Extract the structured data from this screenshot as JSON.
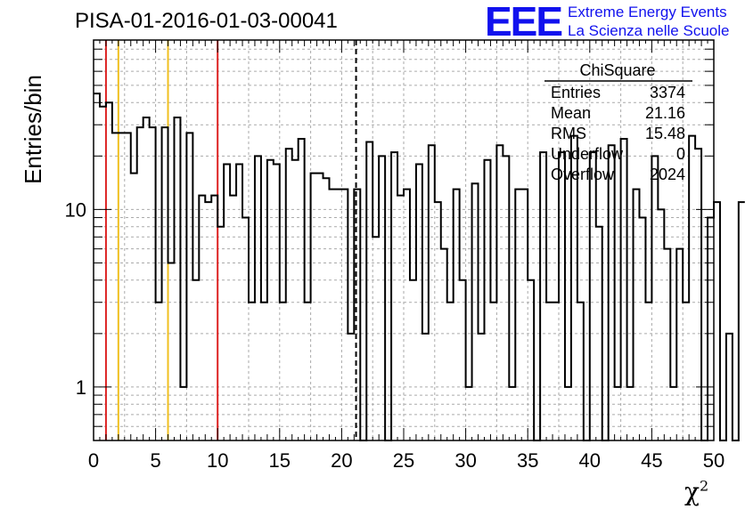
{
  "header": {
    "title": "PISA-01-2016-01-03-00041",
    "logo_text": "EEE",
    "logo_line1": "Extreme Energy Events",
    "logo_line2": "La Scienza nelle Scuole",
    "logo_color": "#1111ee"
  },
  "chart_data": {
    "type": "histogram",
    "xlabel": "χ",
    "xlabel_sup": "2",
    "ylabel": "Entries/bin",
    "x_range": [
      0,
      50
    ],
    "y_range": [
      0.5,
      90
    ],
    "y_scale": "log",
    "bin_width": 0.5,
    "grid": true,
    "x_ticks": [
      0,
      5,
      10,
      15,
      20,
      25,
      30,
      35,
      40,
      45,
      50
    ],
    "y_ticks": [
      1,
      10
    ],
    "values": [
      45,
      38,
      40,
      27,
      27,
      27,
      16,
      29,
      33,
      29,
      3,
      29,
      5,
      33,
      1,
      27,
      4,
      12,
      11,
      12,
      8,
      18,
      12,
      18,
      9,
      3,
      20,
      3,
      19,
      18,
      3,
      22,
      19,
      25,
      3,
      16,
      16,
      15,
      13,
      13,
      13,
      2,
      13,
      0,
      24,
      7,
      20,
      0,
      21,
      12,
      13,
      4,
      18,
      2,
      23,
      11,
      6,
      3,
      13,
      4,
      1,
      14,
      2,
      19,
      3,
      23,
      20,
      1,
      13,
      13,
      4,
      0,
      21,
      3,
      3,
      21,
      1,
      26,
      3,
      0,
      21,
      8,
      0,
      23,
      1,
      25,
      1,
      13,
      9,
      3,
      20,
      10,
      6,
      1,
      6,
      3,
      26,
      22,
      0,
      9,
      11,
      0,
      2,
      0,
      11
    ],
    "style": {
      "hist_color": "#000000",
      "marker_solid_color": "#dd2222",
      "marker_yellow_color": "#f0c020",
      "mean_line_color": "#000000",
      "grid_color": "#aaaaaa"
    },
    "vertical_markers": [
      {
        "x": 1,
        "kind": "solid"
      },
      {
        "x": 2,
        "kind": "yellow"
      },
      {
        "x": 6,
        "kind": "yellow"
      },
      {
        "x": 10,
        "kind": "solid"
      }
    ],
    "mean_line": 21.16
  },
  "stats": {
    "title": "ChiSquare",
    "rows": [
      {
        "label": "Entries",
        "value": "3374"
      },
      {
        "label": "Mean",
        "value": "21.16"
      },
      {
        "label": "RMS",
        "value": "15.48"
      },
      {
        "label": "Underflow",
        "value": "0"
      },
      {
        "label": "Overflow",
        "value": "2024"
      }
    ]
  }
}
